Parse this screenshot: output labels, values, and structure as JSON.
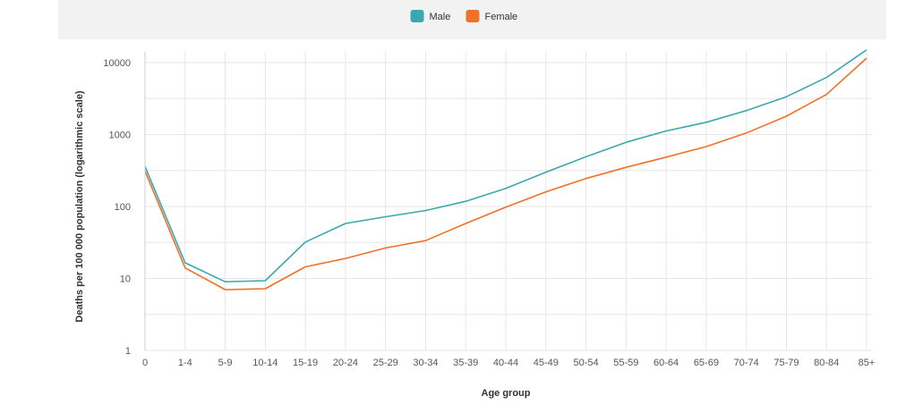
{
  "chart_data": {
    "type": "line",
    "xlabel": "Age group",
    "ylabel": "Deaths per 100 000 population (logarithmic scale)",
    "y_scale": "log",
    "ylim": [
      1,
      10000
    ],
    "y_ticks": [
      "1",
      "10",
      "100",
      "1000",
      "10000"
    ],
    "grid": true,
    "legend": "top-center",
    "categories": [
      "0",
      "1-4",
      "5-9",
      "10-14",
      "15-19",
      "20-24",
      "25-29",
      "30-34",
      "35-39",
      "40-44",
      "45-49",
      "50-54",
      "55-59",
      "60-64",
      "65-69",
      "70-74",
      "75-79",
      "80-84",
      "85+"
    ],
    "series": [
      {
        "name": "Male",
        "color": "#3aa9ad",
        "values": [
          360,
          16.5,
          9,
          9.3,
          32,
          58,
          72,
          88,
          118,
          178,
          300,
          490,
          780,
          1120,
          1480,
          2150,
          3350,
          6200,
          15000
        ]
      },
      {
        "name": "Female",
        "color": "#f07126",
        "values": [
          310,
          14,
          7,
          7.2,
          14.5,
          19,
          26.5,
          33.5,
          58,
          98,
          160,
          245,
          350,
          485,
          680,
          1050,
          1800,
          3600,
          11500
        ]
      }
    ]
  }
}
